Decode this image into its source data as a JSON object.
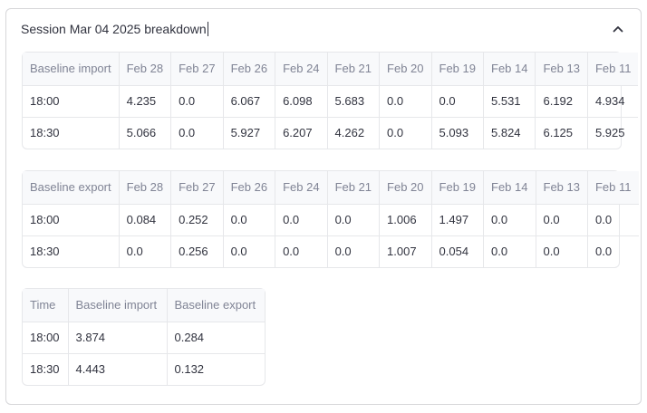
{
  "expander": {
    "title": "Session Mar 04 2025 breakdown",
    "chevron_icon": "chevron-up-icon"
  },
  "import_table": {
    "row_header": "Baseline import",
    "columns": [
      "Feb 28",
      "Feb 27",
      "Feb 26",
      "Feb 24",
      "Feb 21",
      "Feb 20",
      "Feb 19",
      "Feb 14",
      "Feb 13",
      "Feb 11"
    ],
    "rows": [
      {
        "label": "18:00",
        "values": [
          "4.235",
          "0.0",
          "6.067",
          "6.098",
          "5.683",
          "0.0",
          "0.0",
          "5.531",
          "6.192",
          "4.934"
        ]
      },
      {
        "label": "18:30",
        "values": [
          "5.066",
          "0.0",
          "5.927",
          "6.207",
          "4.262",
          "0.0",
          "5.093",
          "5.824",
          "6.125",
          "5.925"
        ]
      }
    ]
  },
  "export_table": {
    "row_header": "Baseline export",
    "columns": [
      "Feb 28",
      "Feb 27",
      "Feb 26",
      "Feb 24",
      "Feb 21",
      "Feb 20",
      "Feb 19",
      "Feb 14",
      "Feb 13",
      "Feb 11"
    ],
    "rows": [
      {
        "label": "18:00",
        "values": [
          "0.084",
          "0.252",
          "0.0",
          "0.0",
          "0.0",
          "1.006",
          "1.497",
          "0.0",
          "0.0",
          "0.0"
        ]
      },
      {
        "label": "18:30",
        "values": [
          "0.0",
          "0.256",
          "0.0",
          "0.0",
          "0.0",
          "1.007",
          "0.054",
          "0.0",
          "0.0",
          "0.0"
        ]
      }
    ]
  },
  "summary_table": {
    "columns": [
      "Time",
      "Baseline import",
      "Baseline export"
    ],
    "rows": [
      [
        "18:00",
        "3.874",
        "0.284"
      ],
      [
        "18:30",
        "4.443",
        "0.132"
      ]
    ]
  }
}
